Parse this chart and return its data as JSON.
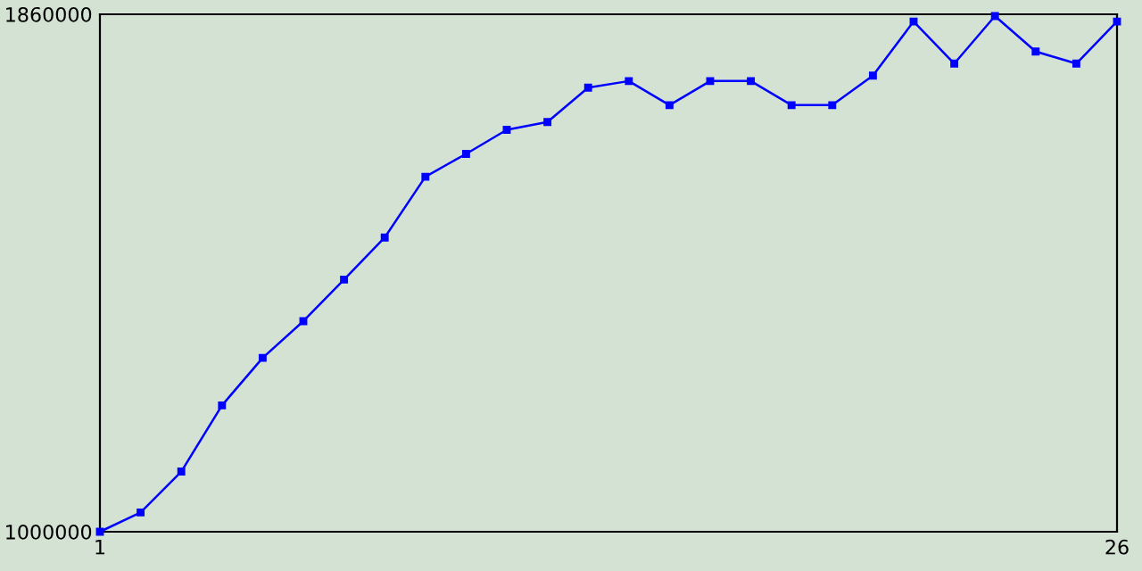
{
  "chart_data": {
    "type": "line",
    "x": [
      1,
      2,
      3,
      4,
      5,
      6,
      7,
      8,
      9,
      10,
      11,
      12,
      13,
      14,
      15,
      16,
      17,
      18,
      19,
      20,
      21,
      22,
      23,
      24,
      25,
      26
    ],
    "series": [
      {
        "color": "#0000ff",
        "values": [
          1000000,
          1032000,
          1100000,
          1210000,
          1289000,
          1350000,
          1419000,
          1489000,
          1590000,
          1628000,
          1668000,
          1681000,
          1738000,
          1749000,
          1709000,
          1749000,
          1749000,
          1709000,
          1709000,
          1758000,
          1848000,
          1778000,
          1857000,
          1798000,
          1778000,
          1848000
        ]
      }
    ],
    "xlim": [
      1,
      26
    ],
    "xticks": [
      1,
      26
    ],
    "ylim": [
      1000000,
      1860000
    ],
    "yticks": [
      1000000,
      1860000
    ],
    "marker": "square",
    "line_style": "solid",
    "grid": false,
    "legend": false
  }
}
